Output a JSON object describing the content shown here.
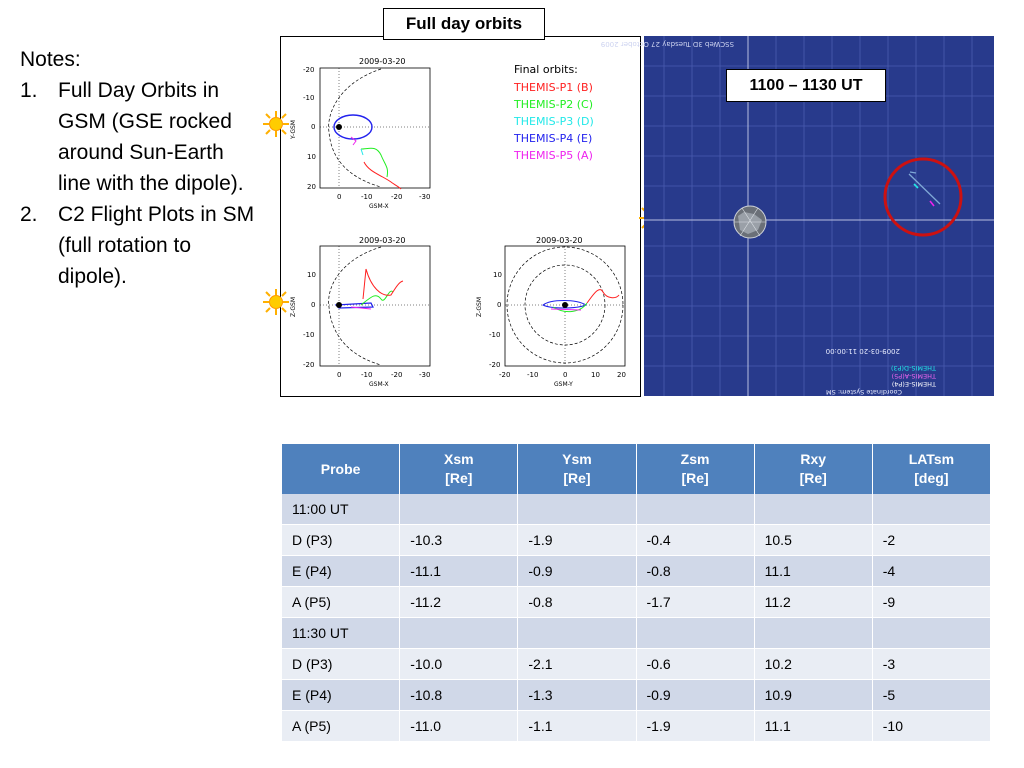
{
  "notes": {
    "heading": "Notes:",
    "items": [
      {
        "num": "1.",
        "text": "Full Day Orbits in GSM (GSE rocked around Sun-Earth line with the dipole)."
      },
      {
        "num": "2.",
        "text": "C2 Flight Plots in SM (full rotation to dipole)."
      }
    ]
  },
  "orbits": {
    "title": "Full day orbits",
    "top_plot": {
      "date": "2009-03-20",
      "xlabel": "GSM-X",
      "ylabel": "Y-GSM",
      "xticks": [
        "0",
        "-10",
        "-20",
        "-30"
      ],
      "yticks": [
        "-20",
        "-10",
        "0",
        "10",
        "20"
      ]
    },
    "bottom_left": {
      "date": "2009-03-20",
      "xlabel": "GSM-X",
      "ylabel": "Z-GSM",
      "xticks": [
        "0",
        "-10",
        "-20",
        "-30"
      ],
      "yticks": [
        "10",
        "0",
        "-10",
        "-20"
      ]
    },
    "bottom_right": {
      "date": "2009-03-20",
      "xlabel": "GSM-Y",
      "ylabel": "Z-GSM",
      "xticks": [
        "-20",
        "-10",
        "0",
        "10",
        "20"
      ],
      "yticks": [
        "10",
        "0",
        "-10",
        "-20"
      ]
    },
    "legend": {
      "title": "Final orbits:",
      "items": [
        {
          "label": "THEMIS-P1 (B)",
          "color": "#ff2020"
        },
        {
          "label": "THEMIS-P2 (C)",
          "color": "#22ee22"
        },
        {
          "label": "THEMIS-P3 (D)",
          "color": "#22e8e8"
        },
        {
          "label": "THEMIS-P4 (E)",
          "color": "#2222ee"
        },
        {
          "label": "THEMIS-P5 (A)",
          "color": "#ee22ee"
        }
      ]
    }
  },
  "sscweb": {
    "ut_label": "1100 – 1130 UT",
    "header_text": "SSCWeb 3D  Tuesday 27 October 2009",
    "timestamp": "2009-03-20  11:00:00",
    "legend_lines": [
      "THEMIS-D(P3)",
      "THEMIS-A(P5)",
      "THEMIS-E(P4)",
      "Coordinate System: SM"
    ]
  },
  "table": {
    "headers": [
      {
        "l1": "Probe",
        "l2": ""
      },
      {
        "l1": "Xsm",
        "l2": "[Re]"
      },
      {
        "l1": "Ysm",
        "l2": "[Re]"
      },
      {
        "l1": "Zsm",
        "l2": "[Re]"
      },
      {
        "l1": "Rxy",
        "l2": "[Re]"
      },
      {
        "l1": "LATsm",
        "l2": "[deg]"
      }
    ],
    "rows": [
      [
        "11:00 UT",
        "",
        "",
        "",
        "",
        ""
      ],
      [
        "D (P3)",
        "-10.3",
        "-1.9",
        "-0.4",
        "10.5",
        "-2"
      ],
      [
        "E (P4)",
        "-11.1",
        "-0.9",
        "-0.8",
        "11.1",
        "-4"
      ],
      [
        "A (P5)",
        "-11.2",
        "-0.8",
        "-1.7",
        "11.2",
        "-9"
      ],
      [
        "11:30 UT",
        "",
        "",
        "",
        "",
        ""
      ],
      [
        "D (P3)",
        "-10.0",
        "-2.1",
        "-0.6",
        "10.2",
        "-3"
      ],
      [
        "E (P4)",
        "-10.8",
        "-1.3",
        "-0.9",
        "10.9",
        "-5"
      ],
      [
        "A (P5)",
        "-11.0",
        "-1.1",
        "-1.9",
        "11.1",
        "-10"
      ]
    ]
  },
  "colors": {
    "header_bg": "#4f81bd",
    "row_odd": "#d0d8e8",
    "row_even": "#e9edf4",
    "ssc_bg": "#283a8c",
    "circle": "#cc1111",
    "sun": "#ffcc00"
  }
}
